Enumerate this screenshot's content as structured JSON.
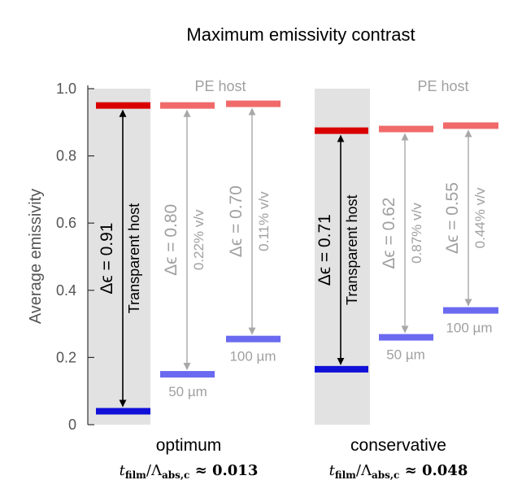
{
  "chart_data": {
    "type": "bar",
    "title": "Maximum emissivity contrast",
    "ylabel": "Average emissivity",
    "ylim": [
      0,
      1.0
    ],
    "yticks": [
      "0",
      "0.2",
      "0.4",
      "0.6",
      "0.8",
      "1.0"
    ],
    "grid": false,
    "groups": [
      {
        "name": "optimum",
        "ratio_label": "t_film/Λ_abs,c ≈ 0.013",
        "ratio_symbol": "t",
        "ratio_sub": "film",
        "ratio_div": "/Λ",
        "ratio_sub2": "abs,c",
        "ratio_value": " ≈ 0.013",
        "host_label": "PE host",
        "cases": [
          {
            "host": "Transparent host",
            "high": 0.95,
            "low": 0.04,
            "delta": "Δϵ = 0.91",
            "conc": "",
            "thickness": "",
            "shaded": true,
            "muted": false
          },
          {
            "host": "PE host",
            "high": 0.95,
            "low": 0.15,
            "delta": "Δϵ = 0.80",
            "conc": "0.22% v/v",
            "thickness": "50 µm",
            "shaded": false,
            "muted": true
          },
          {
            "host": "PE host",
            "high": 0.955,
            "low": 0.255,
            "delta": "Δϵ = 0.70",
            "conc": "0.11% v/v",
            "thickness": "100 µm",
            "shaded": false,
            "muted": true
          }
        ]
      },
      {
        "name": "conservative",
        "ratio_label": "t_film/Λ_abs,c ≈ 0.048",
        "ratio_symbol": "t",
        "ratio_sub": "film",
        "ratio_div": "/Λ",
        "ratio_sub2": "abs,c",
        "ratio_value": " ≈ 0.048",
        "host_label": "PE host",
        "cases": [
          {
            "host": "Transparent host",
            "high": 0.875,
            "low": 0.165,
            "delta": "Δϵ = 0.71",
            "conc": "",
            "thickness": "",
            "shaded": true,
            "muted": false
          },
          {
            "host": "PE host",
            "high": 0.88,
            "low": 0.26,
            "delta": "Δϵ = 0.62",
            "conc": "0.87% v/v",
            "thickness": "50 µm",
            "shaded": false,
            "muted": true
          },
          {
            "host": "PE host",
            "high": 0.89,
            "low": 0.34,
            "delta": "Δϵ = 0.55",
            "conc": "0.44% v/v",
            "thickness": "100 µm",
            "shaded": false,
            "muted": true
          }
        ]
      }
    ],
    "colors": {
      "high_strong": "#d90000",
      "high_muted": "#f06a6a",
      "low_strong": "#1010d8",
      "low_muted": "#6a6af0",
      "arrow_strong": "#000000",
      "arrow_muted": "#a8a8a8",
      "shade": "#e2e2e2",
      "text_muted": "#a0a0a0"
    }
  }
}
